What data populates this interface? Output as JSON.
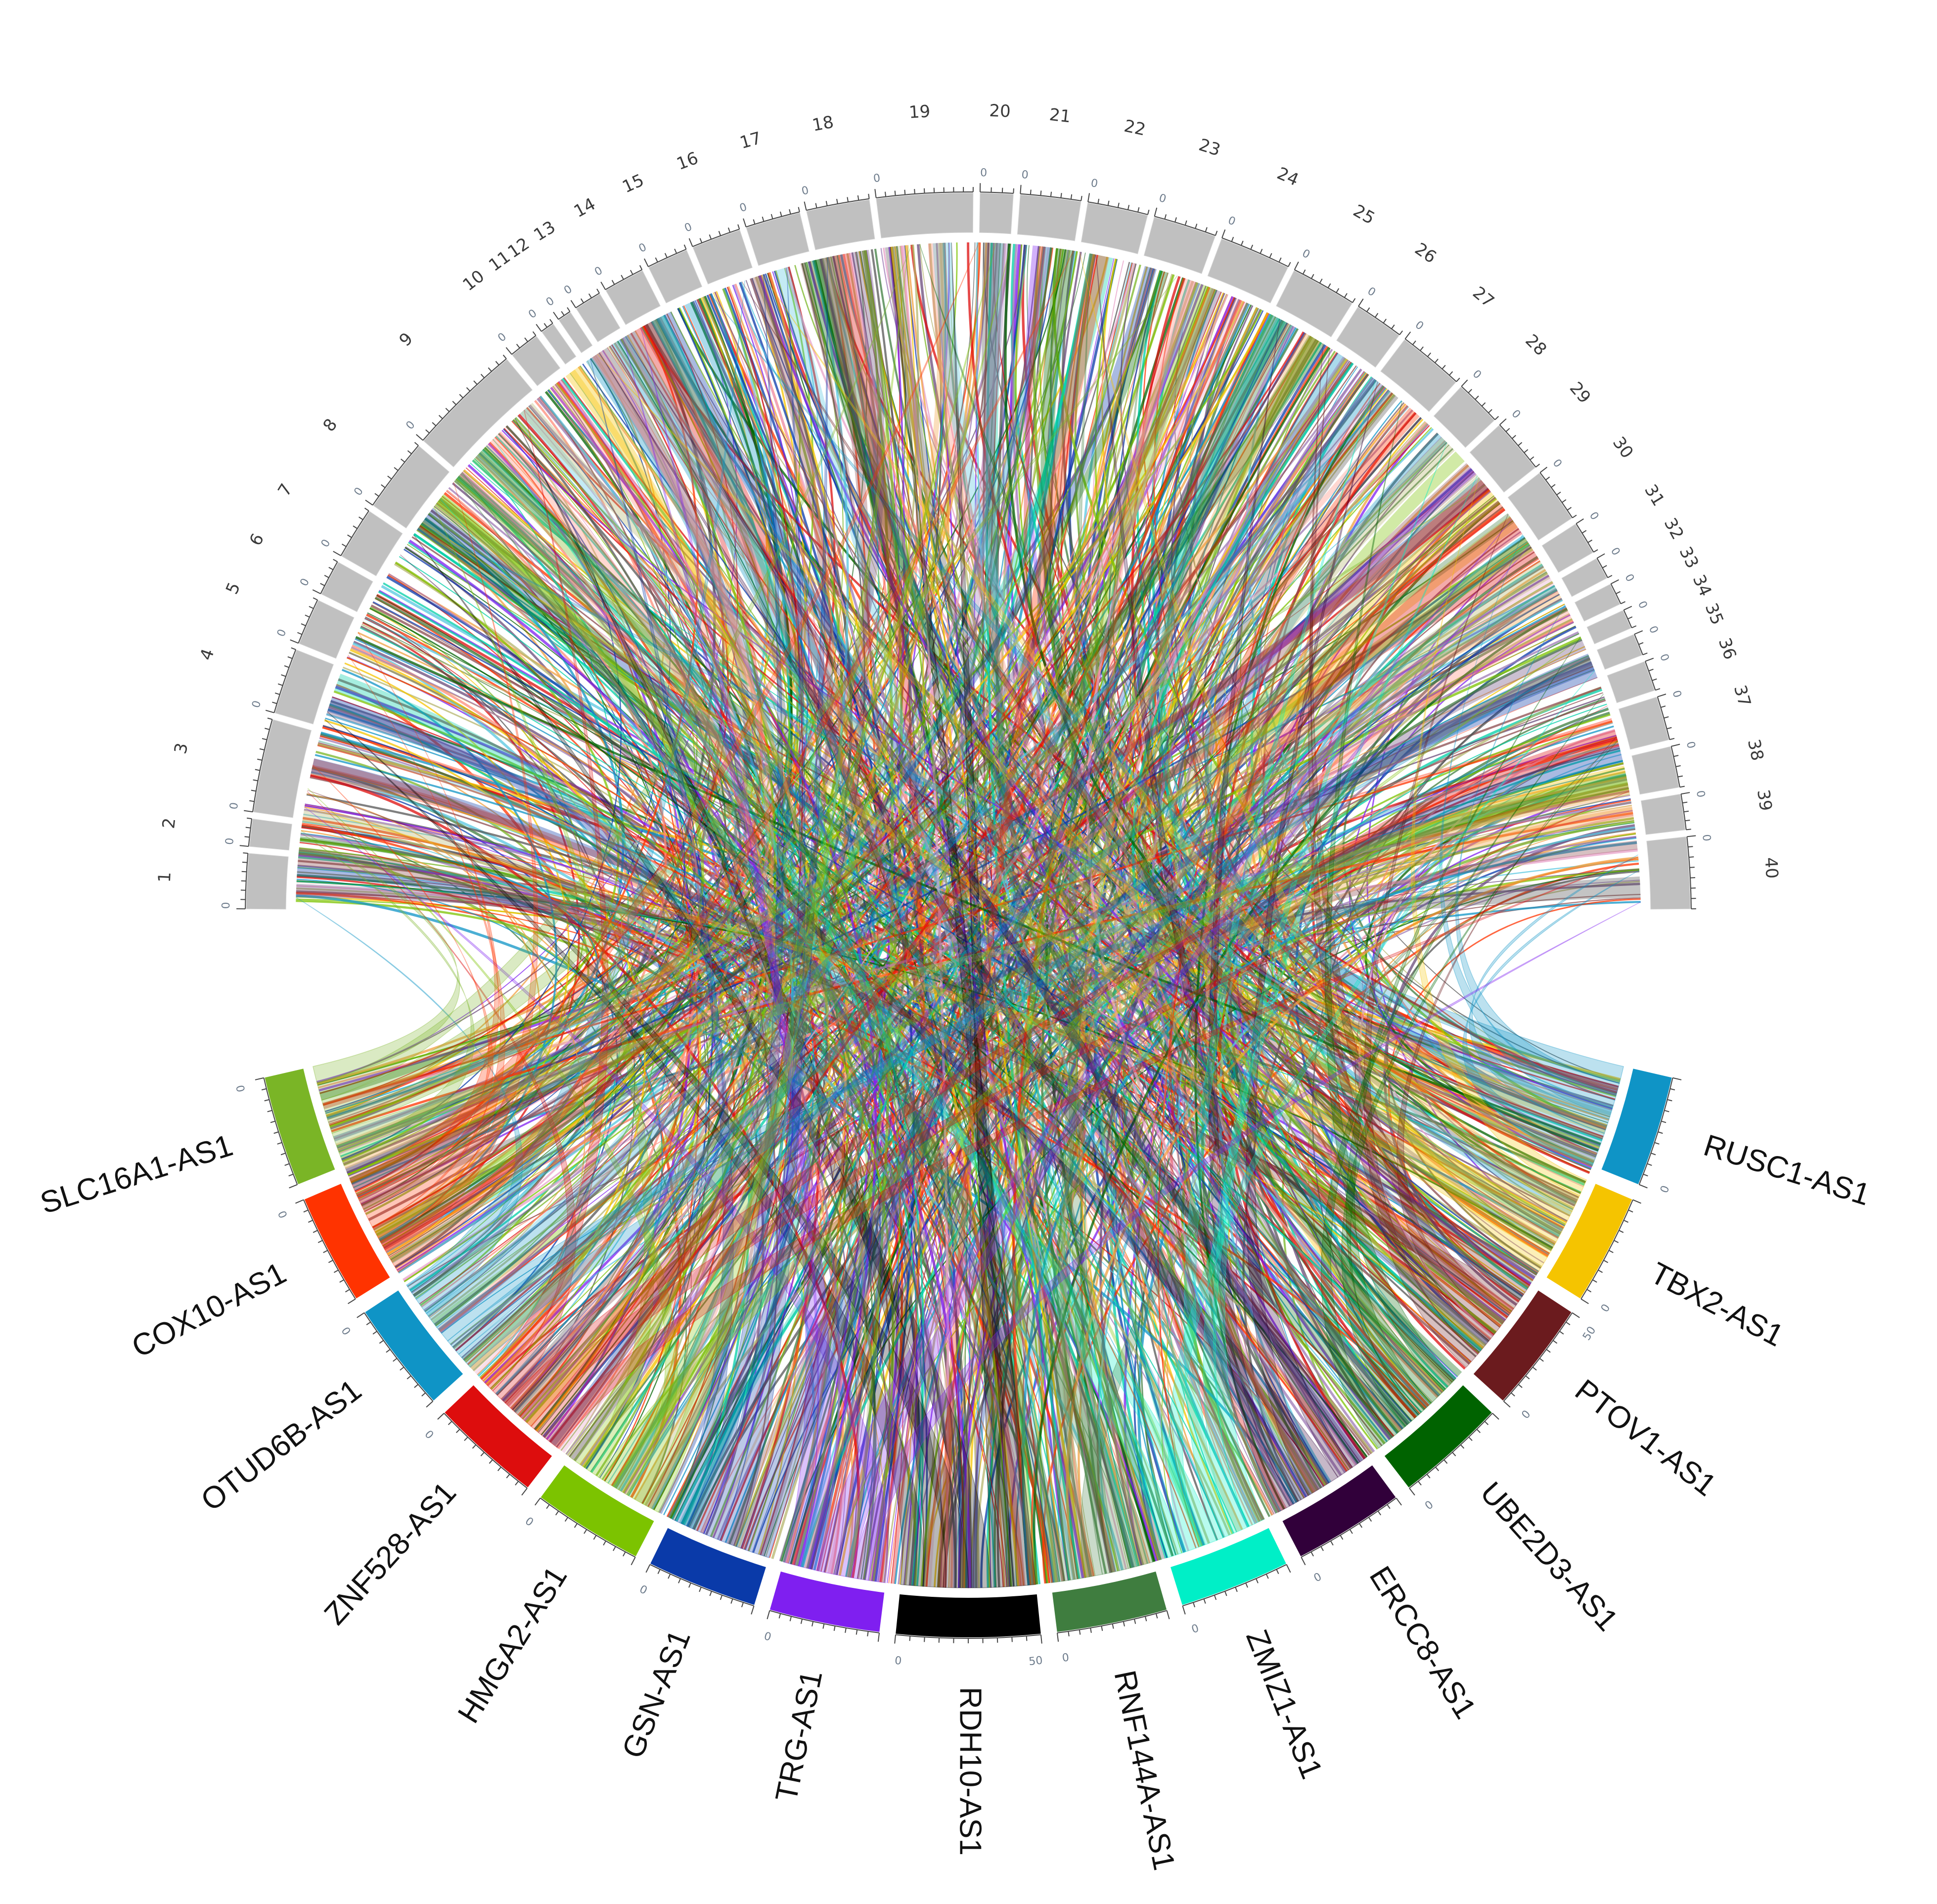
{
  "chart_data": {
    "type": "chord",
    "upper_sectors": [
      {
        "label": "1",
        "weight": 2.0
      },
      {
        "label": "2",
        "weight": 1.0
      },
      {
        "label": "3",
        "weight": 3.4
      },
      {
        "label": "4",
        "weight": 2.4
      },
      {
        "label": "5",
        "weight": 1.7
      },
      {
        "label": "6",
        "weight": 1.3
      },
      {
        "label": "7",
        "weight": 1.9
      },
      {
        "label": "8",
        "weight": 2.7
      },
      {
        "label": "9",
        "weight": 4.2
      },
      {
        "label": "10",
        "weight": 1.1
      },
      {
        "label": "11",
        "weight": 0.5
      },
      {
        "label": "12",
        "weight": 0.5
      },
      {
        "label": "13",
        "weight": 1.0
      },
      {
        "label": "14",
        "weight": 1.5
      },
      {
        "label": "15",
        "weight": 1.5
      },
      {
        "label": "16",
        "weight": 1.8
      },
      {
        "label": "17",
        "weight": 2.0
      },
      {
        "label": "18",
        "weight": 2.3
      },
      {
        "label": "19",
        "weight": 3.5
      },
      {
        "label": "20",
        "weight": 1.2
      },
      {
        "label": "21",
        "weight": 2.2
      },
      {
        "label": "22",
        "weight": 2.2
      },
      {
        "label": "23",
        "weight": 2.3
      },
      {
        "label": "24",
        "weight": 2.6
      },
      {
        "label": "25",
        "weight": 2.4
      },
      {
        "label": "26",
        "weight": 1.8
      },
      {
        "label": "27",
        "weight": 2.4
      },
      {
        "label": "28",
        "weight": 1.7
      },
      {
        "label": "29",
        "weight": 2.0
      },
      {
        "label": "30",
        "weight": 2.0
      },
      {
        "label": "31",
        "weight": 1.2
      },
      {
        "label": "32",
        "weight": 0.8
      },
      {
        "label": "33",
        "weight": 0.8
      },
      {
        "label": "34",
        "weight": 0.7
      },
      {
        "label": "35",
        "weight": 0.8
      },
      {
        "label": "36",
        "weight": 1.1
      },
      {
        "label": "37",
        "weight": 1.6
      },
      {
        "label": "38",
        "weight": 1.5
      },
      {
        "label": "39",
        "weight": 1.3
      },
      {
        "label": "40",
        "weight": 2.6
      }
    ],
    "lower_sectors": [
      {
        "label": "SLC16A1-AS1",
        "color": "#7ab526",
        "weight": 1.0
      },
      {
        "label": "COX10-AS1",
        "color": "#ff3300",
        "weight": 1.0
      },
      {
        "label": "OTUD6B-AS1",
        "color": "#0f94c6",
        "weight": 1.0
      },
      {
        "label": "ZNF528-AS1",
        "color": "#dd0d0d",
        "weight": 1.0
      },
      {
        "label": "HMGA2-AS1",
        "color": "#7cc300",
        "weight": 1.0
      },
      {
        "label": "GSN-AS1",
        "color": "#0a3aa9",
        "weight": 1.0
      },
      {
        "label": "TRG-AS1",
        "color": "#7f1ff0",
        "weight": 1.0
      },
      {
        "label": "RDH10-AS1",
        "color": "#000000",
        "weight": 1.3
      },
      {
        "label": "RNF144A-AS1",
        "color": "#3f7d3f",
        "weight": 1.0
      },
      {
        "label": "ZMIZ1-AS1",
        "color": "#00efc7",
        "weight": 1.0
      },
      {
        "label": "ERCC8-AS1",
        "color": "#31003a",
        "weight": 1.0
      },
      {
        "label": "UBE2D3-AS1",
        "color": "#006300",
        "weight": 1.0
      },
      {
        "label": "PTOV1-AS1",
        "color": "#6b1b1e",
        "weight": 1.0
      },
      {
        "label": "TBX2-AS1",
        "color": "#f5c400",
        "weight": 1.0
      },
      {
        "label": "RUSC1-AS1",
        "color": "#0f94c6",
        "weight": 1.0
      }
    ],
    "tick_labels": {
      "zero": "0",
      "fifty": "50"
    },
    "upper_color": "#c0c0c0",
    "link_palette": [
      "#7ab526",
      "#ff3300",
      "#0f94c6",
      "#dd0d0d",
      "#7cc300",
      "#0a3aa9",
      "#7f1ff0",
      "#555555",
      "#3f7d3f",
      "#00cfa7",
      "#6a4a7a",
      "#006300",
      "#8c4b4e",
      "#f5c400",
      "#ff8c7a",
      "#9e7ab5",
      "#e8a3c9",
      "#57c7e0",
      "#b5b56e",
      "#f0a040"
    ]
  }
}
